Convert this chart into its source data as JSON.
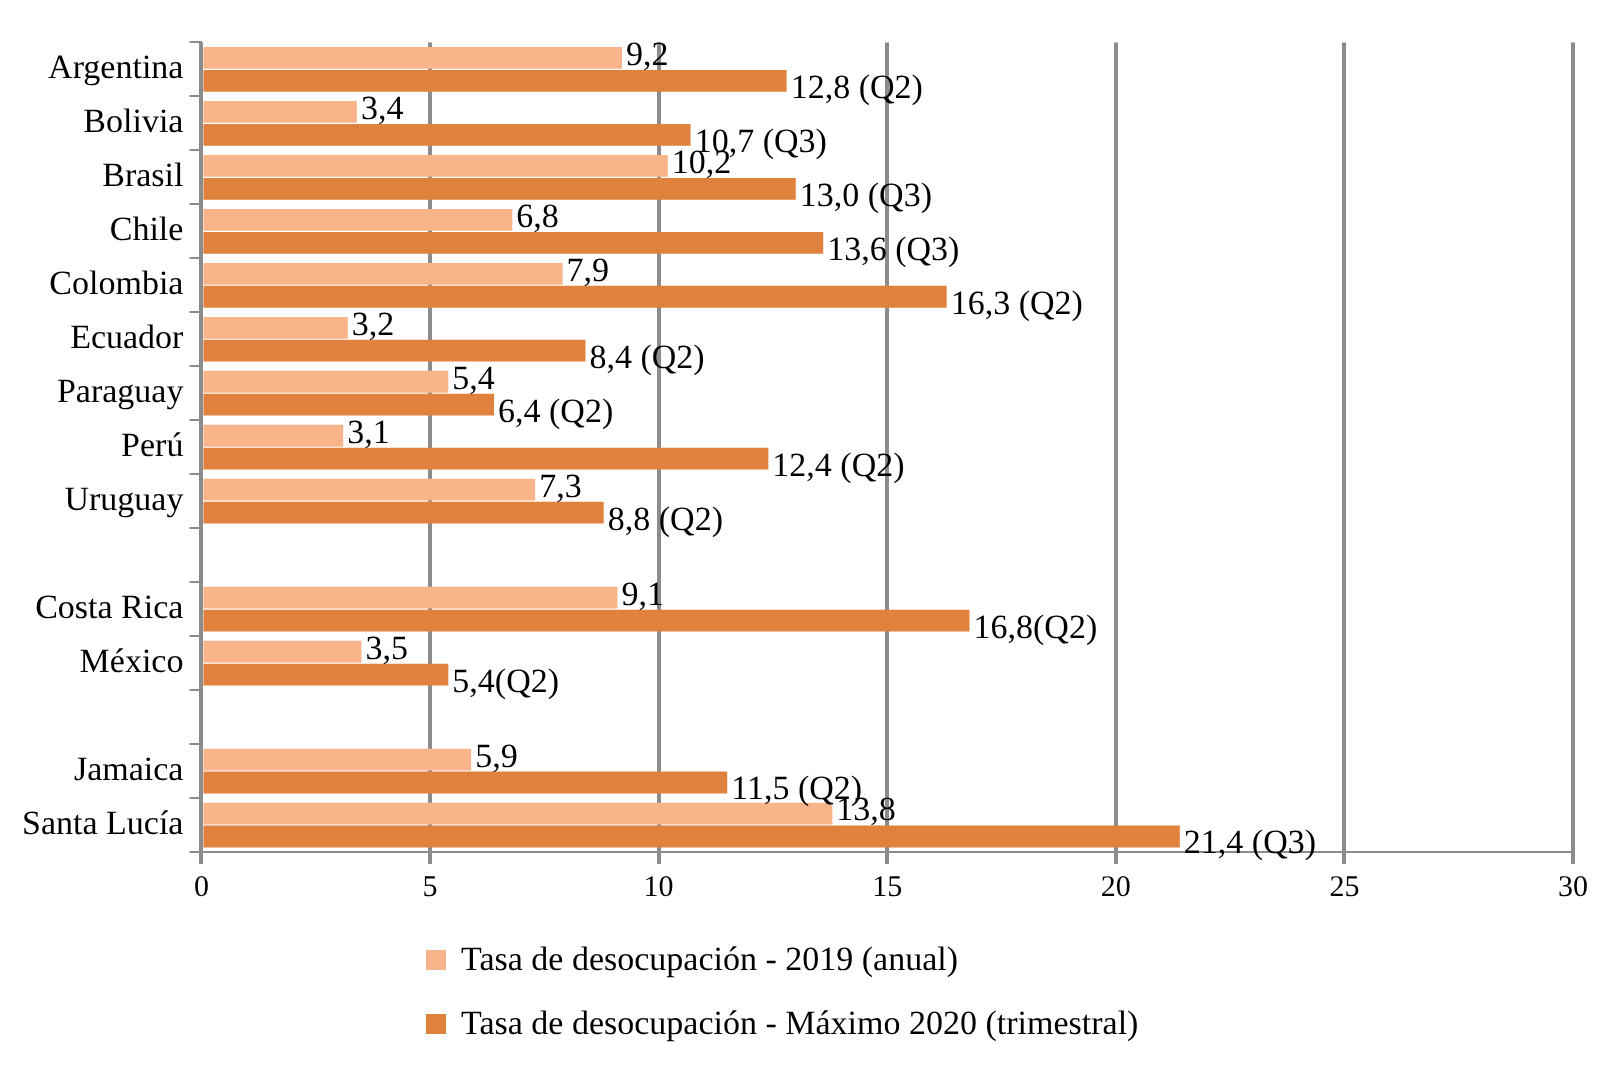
{
  "chart_data": {
    "type": "bar",
    "orientation": "horizontal",
    "categories": [
      "Argentina",
      "Bolivia",
      "Brasil",
      "Chile",
      "Colombia",
      "Ecuador",
      "Paraguay",
      "Perú",
      "Uruguay",
      null,
      "Costa Rica",
      "México",
      null,
      "Jamaica",
      "Santa Lucía"
    ],
    "series": [
      {
        "name": "Tasa de desocupación - 2019 (anual)",
        "color": "#f9b48a",
        "values": [
          9.2,
          3.4,
          10.2,
          6.8,
          7.9,
          3.2,
          5.4,
          3.1,
          7.3,
          null,
          9.1,
          3.5,
          null,
          5.9,
          13.8
        ],
        "value_labels": [
          "9,2",
          "3,4",
          "10,2",
          "6,8",
          "7,9",
          "3,2",
          "5,4",
          "3,1",
          "7,3",
          null,
          "9,1",
          "3,5",
          null,
          "5,9",
          "13,8"
        ]
      },
      {
        "name": "Tasa de desocupación - Máximo 2020 (trimestral)",
        "color": "#e0823d",
        "values": [
          12.8,
          10.7,
          13.0,
          13.6,
          16.3,
          8.4,
          6.4,
          12.4,
          8.8,
          null,
          16.8,
          5.4,
          null,
          11.5,
          21.4
        ],
        "value_labels": [
          "12,8 (Q2)",
          "10,7 (Q3)",
          "13,0 (Q3)",
          "13,6 (Q3)",
          "16,3 (Q2)",
          "8,4 (Q2)",
          "6,4 (Q2)",
          "12,4 (Q2)",
          "8,8 (Q2)",
          null,
          "16,8(Q2)",
          "5,4(Q2)",
          null,
          "11,5 (Q2)",
          "21,4 (Q3)"
        ]
      }
    ],
    "xlim": [
      0,
      30
    ],
    "xticks": [
      0,
      5,
      10,
      15,
      20,
      25,
      30
    ],
    "grid": "x",
    "legend": "bottom"
  }
}
